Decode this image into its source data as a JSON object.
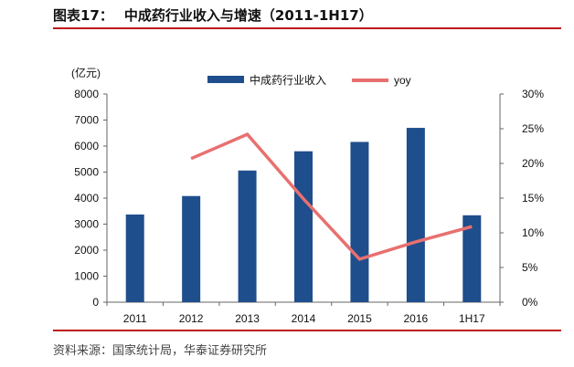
{
  "figure": {
    "label": "图表17：",
    "title": "中成药行业收入与增速（2011-1H17）",
    "source": "资料来源：国家统计局，华泰证券研究所"
  },
  "chart_data": {
    "type": "bar",
    "categories": [
      "2011",
      "2012",
      "2013",
      "2014",
      "2015",
      "2016",
      "1H17"
    ],
    "series": [
      {
        "name": "中成药行业收入",
        "type": "bar",
        "axis": "left",
        "color": "#1f4e8c",
        "values": [
          3370,
          4080,
          5060,
          5800,
          6160,
          6700,
          3340
        ]
      },
      {
        "name": "yoy",
        "type": "line",
        "axis": "right",
        "color": "#e8706f",
        "values": [
          null,
          0.207,
          0.242,
          0.149,
          0.062,
          0.087,
          0.109
        ]
      }
    ],
    "left_axis": {
      "unit_label": "(亿元)",
      "ylim": [
        0,
        8000
      ],
      "ticks": [
        "0",
        "1000",
        "2000",
        "3000",
        "4000",
        "5000",
        "6000",
        "7000",
        "8000"
      ]
    },
    "right_axis": {
      "ylim": [
        0,
        0.3
      ],
      "ticks": [
        "0%",
        "5%",
        "10%",
        "15%",
        "20%",
        "25%",
        "30%"
      ]
    },
    "legend": {
      "placement": "top-center"
    },
    "grid": false
  }
}
